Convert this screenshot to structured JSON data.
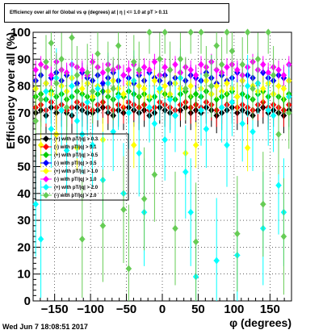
{
  "title": "Efficiency over all for Global vs φ (degrees) at | η | <= 1.0 at pT > 0.11",
  "timestamp": "Wed Jun  7 18:08:51 2017",
  "chart_data": {
    "type": "scatter",
    "xlabel": "φ (degrees)",
    "ylabel": "Efficiency over all (%)",
    "xlim": [
      -180,
      180
    ],
    "ylim": [
      0,
      100
    ],
    "x_ticks": [
      -150,
      -100,
      -50,
      0,
      50,
      100,
      150
    ],
    "y_ticks": [
      0,
      10,
      20,
      30,
      40,
      50,
      60,
      70,
      80,
      90,
      100
    ],
    "grid": true,
    "legend_position": "left-middle",
    "x": [
      -176.4,
      -169.2,
      -162.0,
      -154.8,
      -147.6,
      -140.4,
      -133.2,
      -126.0,
      -118.8,
      -111.6,
      -104.4,
      -97.2,
      -90.0,
      -82.8,
      -75.6,
      -68.4,
      -61.2,
      -54.0,
      -46.8,
      -39.6,
      -32.4,
      -25.2,
      -18.0,
      -10.8,
      -3.6,
      3.6,
      10.8,
      18.0,
      25.2,
      32.4,
      39.6,
      46.8,
      54.0,
      61.2,
      68.4,
      75.6,
      82.8,
      90.0,
      97.2,
      104.4,
      111.6,
      118.8,
      126.0,
      133.2,
      140.4,
      147.6,
      154.8,
      162.0,
      169.2,
      176.4
    ],
    "series": [
      {
        "name": "(+) with pT/|q| > 0.3",
        "color": "#000000",
        "marker": "diamond",
        "values": [
          70,
          71,
          69,
          72,
          70,
          71,
          70,
          69,
          72,
          71,
          70,
          70,
          71,
          72,
          70,
          69,
          71,
          70,
          72,
          71,
          70,
          71,
          69,
          70,
          72,
          71,
          70,
          69,
          71,
          72,
          70,
          71,
          70,
          72,
          71,
          69,
          70,
          71,
          72,
          70,
          71,
          70,
          69,
          71,
          72,
          70,
          71,
          70,
          69,
          71
        ]
      },
      {
        "name": "(-) with pT/|q| > 0.1",
        "color": "#ff0000",
        "marker": "diamond",
        "values": [
          72,
          73,
          71,
          74,
          72,
          73,
          71,
          72,
          74,
          73,
          72,
          71,
          73,
          74,
          72,
          71,
          73,
          72,
          74,
          73,
          72,
          73,
          71,
          72,
          74,
          73,
          72,
          71,
          73,
          74,
          72,
          73,
          72,
          74,
          73,
          71,
          72,
          73,
          74,
          72,
          73,
          72,
          71,
          73,
          74,
          72,
          73,
          72,
          71,
          73
        ]
      },
      {
        "name": "(+) with pT/|q| > 0.5",
        "color": "#00cc00",
        "marker": "diamond",
        "values": [
          76,
          77,
          75,
          78,
          76,
          77,
          75,
          76,
          78,
          77,
          76,
          75,
          77,
          78,
          76,
          75,
          77,
          76,
          78,
          77,
          76,
          77,
          75,
          76,
          78,
          77,
          76,
          75,
          77,
          78,
          76,
          77,
          76,
          78,
          77,
          75,
          76,
          77,
          78,
          76,
          77,
          76,
          75,
          77,
          78,
          76,
          77,
          76,
          75,
          77
        ]
      },
      {
        "name": "(-) with pT/|q| > 0.5",
        "color": "#0000ff",
        "marker": "diamond",
        "values": [
          82,
          84,
          81,
          83,
          85,
          82,
          84,
          83,
          81,
          85,
          83,
          82,
          84,
          81,
          83,
          85,
          82,
          84,
          83,
          81,
          84,
          82,
          85,
          83,
          82,
          84,
          81,
          83,
          85,
          82,
          84,
          83,
          82,
          85,
          83,
          81,
          84,
          82,
          83,
          85,
          82,
          84,
          83,
          81,
          85,
          83,
          82,
          84,
          83,
          82
        ]
      },
      {
        "name": "(+) with pT/|q| > 1.0",
        "color": "#ffff00",
        "marker": "diamond",
        "values": [
          79,
          58,
          81,
          77,
          62,
          80,
          78,
          83,
          57,
          79,
          81,
          76,
          80,
          60,
          78,
          82,
          79,
          77,
          81,
          58,
          80,
          79,
          76,
          82,
          78,
          80,
          77,
          81,
          79,
          55,
          80,
          58,
          79,
          82,
          77,
          80,
          78,
          81,
          79,
          76,
          82,
          57,
          80,
          78,
          79,
          81,
          77,
          80,
          79,
          82
        ]
      },
      {
        "name": "(-) with pT/|q| > 1.0",
        "color": "#ff00ff",
        "marker": "diamond",
        "values": [
          86,
          88,
          87,
          84,
          89,
          86,
          85,
          88,
          87,
          86,
          84,
          89,
          87,
          85,
          88,
          86,
          87,
          84,
          86,
          88,
          85,
          87,
          86,
          89,
          84,
          87,
          86,
          88,
          85,
          87,
          86,
          84,
          88,
          87,
          89,
          86,
          85,
          87,
          88,
          86,
          84,
          87,
          89,
          86,
          88,
          85,
          87,
          86,
          84,
          88
        ]
      },
      {
        "name": "(+) with pT/|q| > 2.0",
        "color": "#00ffff",
        "marker": "diamond",
        "values": [
          36,
          23,
          78,
          64,
          83,
          71,
          56,
          80,
          67,
          62,
          74,
          58,
          79,
          45,
          81,
          63,
          76,
          40,
          70,
          82,
          55,
          33,
          72,
          66,
          79,
          60,
          75,
          69,
          83,
          48,
          33,
          9,
          71,
          64,
          80,
          15,
          72,
          58,
          74,
          17,
          66,
          80,
          63,
          81,
          27,
          71,
          69,
          43,
          33,
          76
        ]
      },
      {
        "name": "(-) with pT/|q| > 2.0",
        "color": "#66cc55",
        "marker": "diamond",
        "values": [
          67,
          75,
          89,
          96,
          81,
          90,
          72,
          98,
          84,
          23,
          85,
          78,
          92,
          28,
          86,
          79,
          95,
          34,
          12,
          89,
          86,
          38,
          100,
          47,
          90,
          100,
          86,
          27,
          90,
          79,
          100,
          22,
          100,
          84,
          80,
          95,
          88,
          100,
          93,
          25,
          88,
          100,
          79,
          90,
          36,
          100,
          84,
          62,
          24,
          70
        ]
      }
    ],
    "legend": [
      "(+) with pT/|q| > 0.3",
      "(-) with pT/|q| > 0.1",
      "(+) with pT/|q| > 0.5",
      "(-) with pT/|q| > 0.5",
      "(+) with pT/|q| > 1.0",
      "(-) with pT/|q| > 1.0",
      "(+) with pT/|q| > 2.0",
      "(-) with pT/|q| > 2.0"
    ]
  }
}
